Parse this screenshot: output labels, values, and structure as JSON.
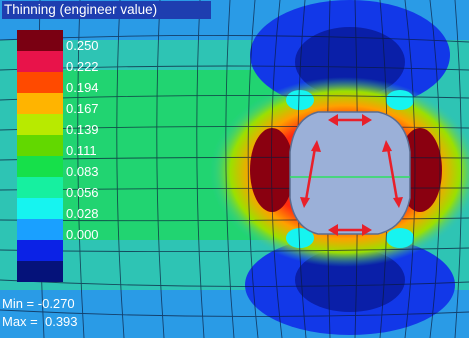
{
  "title": "Thinning (engineer value)",
  "legend": {
    "colors": [
      "#7a0012",
      "#e8134a",
      "#ff4a00",
      "#ffb400",
      "#b8ea00",
      "#62d800",
      "#16e04a",
      "#16f0a0",
      "#16f4f0",
      "#1aa0ff",
      "#0b22e6",
      "#05127a"
    ],
    "ticks": [
      "0.250",
      "0.222",
      "0.194",
      "0.167",
      "0.139",
      "0.111",
      "0.083",
      "0.056",
      "0.028",
      "0.000"
    ]
  },
  "stats": {
    "min_label": "Min = -0.270",
    "max_label": "Max =  0.393"
  },
  "colors": {
    "background": "#2ec4b4",
    "hole": "#9bb0d8",
    "arrows": "#e8202a"
  }
}
